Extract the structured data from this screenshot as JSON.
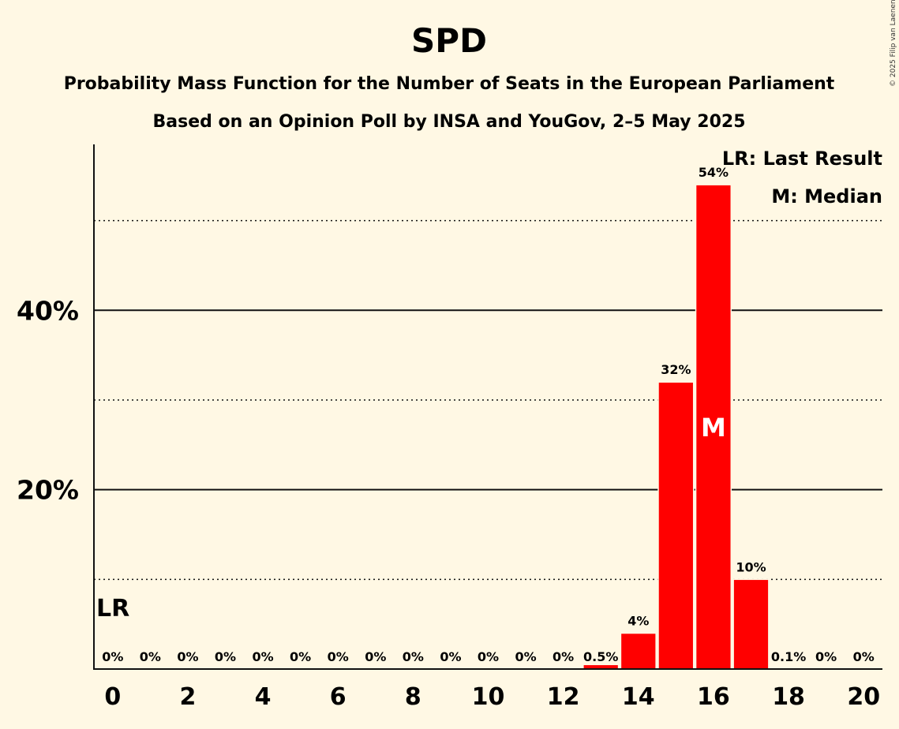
{
  "chart_data": {
    "type": "bar",
    "title": "SPD",
    "subtitle": "Probability Mass Function for the Number of Seats in the European Parliament",
    "subtitle2": "Based on an Opinion Poll by INSA and YouGov, 2–5 May 2025",
    "copyright": "© 2025 Filip van Laenen",
    "x": [
      0,
      1,
      2,
      3,
      4,
      5,
      6,
      7,
      8,
      9,
      10,
      11,
      12,
      13,
      14,
      15,
      16,
      17,
      18,
      19,
      20
    ],
    "values": [
      0,
      0,
      0,
      0,
      0,
      0,
      0,
      0,
      0,
      0,
      0,
      0,
      0,
      0.5,
      4,
      32,
      54,
      10,
      0.1,
      0,
      0
    ],
    "value_labels": [
      "0%",
      "0%",
      "0%",
      "0%",
      "0%",
      "0%",
      "0%",
      "0%",
      "0%",
      "0%",
      "0%",
      "0%",
      "0%",
      "0.5%",
      "4%",
      "32%",
      "54%",
      "10%",
      "0.1%",
      "0%",
      "0%"
    ],
    "xticks": [
      0,
      2,
      4,
      6,
      8,
      10,
      12,
      14,
      16,
      18,
      20
    ],
    "yticks_major": [
      {
        "value": 20,
        "label": "20%"
      },
      {
        "value": 40,
        "label": "40%"
      }
    ],
    "yticks_minor": [
      10,
      30,
      50
    ],
    "ylim": [
      0,
      58.5
    ],
    "xlim": [
      -0.5,
      20.5
    ],
    "bar_color": "#FF0000",
    "background_color": "#FFF8E4",
    "last_result": {
      "seat": 0,
      "marker": "LR"
    },
    "median": {
      "seat": 16,
      "marker": "M"
    },
    "legend": {
      "position": "top-right",
      "items": [
        "LR: Last Result",
        "M: Median"
      ]
    }
  }
}
